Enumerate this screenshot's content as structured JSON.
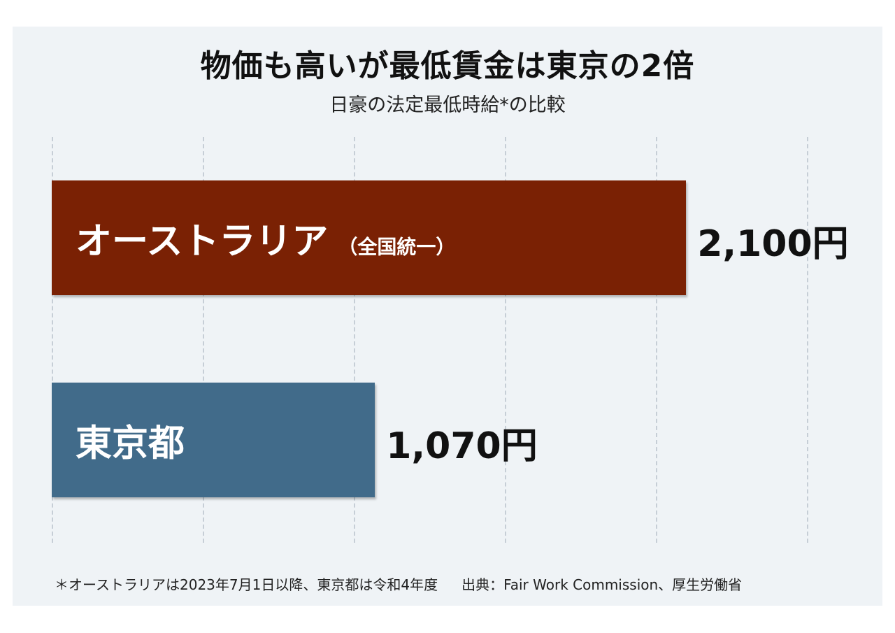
{
  "chart_data": {
    "type": "bar",
    "orientation": "horizontal",
    "title": "物価も高いが最低賃金は東京の2倍",
    "subtitle": "日豪の法定最低時給*の比較",
    "categories": [
      "オーストラリア",
      "東京都"
    ],
    "category_notes": [
      "（全国統一）",
      ""
    ],
    "values": [
      2100,
      1070
    ],
    "value_labels": [
      "2,100円",
      "1,070円"
    ],
    "unit": "円",
    "xlim": [
      0,
      2500
    ],
    "grid": true,
    "bar_colors": [
      "#7a2104",
      "#416b8a"
    ]
  },
  "footnote": {
    "note": "＊オーストラリアは2023年7月1日以降、東京都は令和4年度",
    "source": "出典：Fair Work Commission、厚生労働省"
  },
  "colors": {
    "background": "#eff3f6",
    "gridline": "#c6ced6",
    "text": "#111111"
  }
}
